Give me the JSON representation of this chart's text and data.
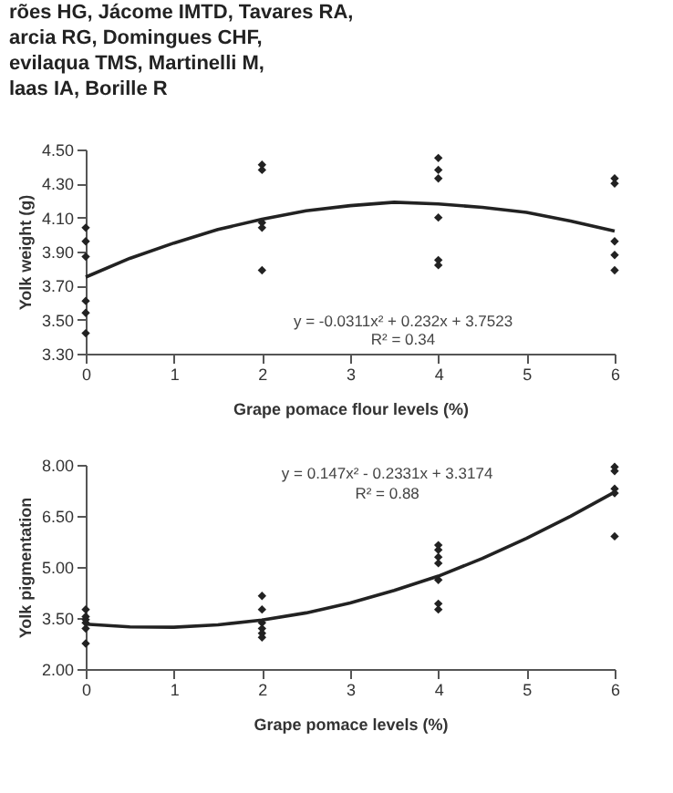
{
  "chart_data": [
    {
      "type": "scatter",
      "xlabel": "Grape pomace flour levels (%)",
      "ylabel": "Yolk weight (g)",
      "annotations": [
        "rões HG, Jácome IMTD, Tavares RA,",
        "arcia RG, Domingues CHF,",
        "evilaqua TMS, Martinelli M,",
        "laas IA, Borille R",
        "y = -0.0311x² + 0.232x + 3.7523",
        "R² = 0.34"
      ],
      "series": [
        {
          "type": "scatter",
          "color": "#222222",
          "marker": "diamond",
          "x": [
            0,
            0,
            0,
            0,
            0,
            0,
            2,
            2,
            2,
            2,
            2,
            4,
            4,
            4,
            4,
            4,
            4,
            6,
            6,
            6,
            6,
            6
          ],
          "values": [
            4.04,
            3.96,
            3.87,
            3.61,
            3.54,
            3.42,
            4.41,
            4.38,
            4.07,
            4.04,
            3.79,
            4.45,
            4.38,
            4.33,
            4.1,
            3.85,
            3.82,
            4.33,
            4.3,
            3.96,
            3.88,
            3.79
          ]
        },
        {
          "type": "line",
          "color": "#222222",
          "line_style": "solid",
          "x": [
            0,
            0.5,
            1,
            1.5,
            2,
            2.5,
            3,
            3.5,
            4,
            4.5,
            5,
            5.5,
            6
          ],
          "values": [
            3.75,
            3.86,
            3.95,
            4.03,
            4.09,
            4.14,
            4.17,
            4.19,
            4.18,
            4.16,
            4.13,
            4.08,
            4.02
          ]
        }
      ],
      "xlim": [
        0,
        6
      ],
      "xticks": [
        0,
        1,
        2,
        3,
        4,
        5,
        6
      ],
      "ylim": [
        3.3,
        4.5
      ],
      "yticks": [
        {
          "value": 3.3,
          "label": "3.30"
        },
        {
          "value": 3.5,
          "label": "3.50"
        },
        {
          "value": 3.7,
          "label": "3.70"
        },
        {
          "value": 3.9,
          "label": "3.90"
        },
        {
          "value": 4.1,
          "label": "4.10"
        },
        {
          "value": 4.3,
          "label": "4.30"
        },
        {
          "value": 4.5,
          "label": "4.50"
        }
      ],
      "grid": false,
      "legend": false
    },
    {
      "type": "scatter",
      "xlabel": "Grape pomace levels (%)",
      "ylabel": "Yolk pigmentation",
      "annotations": [
        "y = 0.147x² - 0.2331x + 3.3174",
        "R² = 0.88"
      ],
      "series": [
        {
          "type": "scatter",
          "color": "#222222",
          "marker": "diamond",
          "x": [
            0,
            0,
            0,
            0,
            0,
            0,
            2,
            2,
            2,
            2,
            2,
            2,
            4,
            4,
            4,
            4,
            4,
            4,
            4,
            6,
            6,
            6,
            6,
            6
          ],
          "values": [
            3.75,
            3.54,
            3.45,
            3.36,
            3.19,
            2.75,
            4.15,
            3.75,
            3.36,
            3.19,
            3.05,
            2.93,
            5.64,
            5.5,
            5.29,
            5.11,
            4.62,
            3.92,
            3.75,
            7.94,
            7.82,
            7.3,
            7.17,
            5.9
          ]
        },
        {
          "type": "line",
          "color": "#222222",
          "line_style": "solid",
          "x": [
            0,
            0.5,
            1,
            1.5,
            2,
            2.5,
            3,
            3.5,
            4,
            4.5,
            5,
            5.5,
            6
          ],
          "values": [
            3.32,
            3.24,
            3.23,
            3.3,
            3.44,
            3.65,
            3.94,
            4.31,
            4.73,
            5.25,
            5.84,
            6.49,
            7.2
          ]
        }
      ],
      "xlim": [
        0,
        6
      ],
      "xticks": [
        0,
        1,
        2,
        3,
        4,
        5,
        6
      ],
      "ylim": [
        2,
        8
      ],
      "yticks": [
        {
          "value": 2,
          "label": "2.00"
        },
        {
          "value": 3.5,
          "label": "3.50"
        },
        {
          "value": 5,
          "label": "5.00"
        },
        {
          "value": 6.5,
          "label": "6.50"
        },
        {
          "value": 8,
          "label": "8.00"
        }
      ],
      "grid": false,
      "legend": false
    }
  ]
}
